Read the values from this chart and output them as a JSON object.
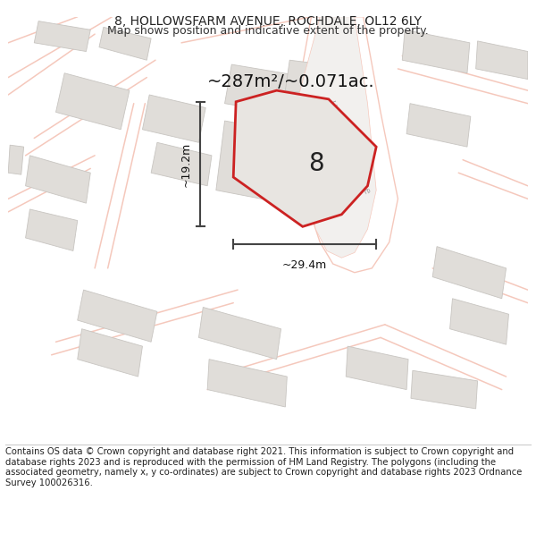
{
  "title": "8, HOLLOWSFARM AVENUE, ROCHDALE, OL12 6LY",
  "subtitle": "Map shows position and indicative extent of the property.",
  "area_text": "~287m²/~0.071ac.",
  "width_label": "~29.4m",
  "height_label": "~19.2m",
  "plot_number": "8",
  "footer_text": "Contains OS data © Crown copyright and database right 2021. This information is subject to Crown copyright and database rights 2023 and is reproduced with the permission of HM Land Registry. The polygons (including the associated geometry, namely x, y co-ordinates) are subject to Crown copyright and database rights 2023 Ordnance Survey 100026316.",
  "map_bg": "#f2f0ee",
  "bld_fill": "#e0ddd9",
  "bld_edge": "#c8c5c1",
  "road_fill": "#ffffff",
  "road_stroke": "#f5c8bc",
  "plot_fill": "#e8e5e1",
  "plot_edge": "#cc2222",
  "dim_color": "#444444",
  "street_color": "#aaaaaa",
  "street_label": "Hallows Farm Avenue",
  "title_fontsize": 10,
  "footer_fontsize": 7.2
}
